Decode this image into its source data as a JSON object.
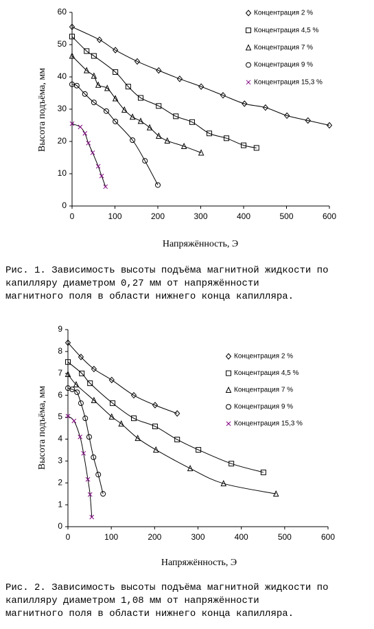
{
  "chart_data": [
    {
      "type": "scatter",
      "xlabel": "Напряжённость, Э",
      "ylabel": "Высота подъёма, мм",
      "xlim": [
        0,
        600
      ],
      "ylim": [
        0,
        60
      ],
      "xticks": [
        0,
        100,
        200,
        300,
        400,
        500,
        600
      ],
      "yticks": [
        0,
        10,
        20,
        30,
        40,
        50,
        60
      ],
      "legend": "upper right",
      "trendlines": true,
      "series": [
        {
          "name": "Концентрация 2 %",
          "color": "#000000",
          "marker": "diamond",
          "x": [
            0,
            64,
            101,
            152,
            202,
            251,
            301,
            352,
            402,
            451,
            501,
            550,
            600
          ],
          "values": [
            55.5,
            51.5,
            48.3,
            44.8,
            42,
            39.4,
            37,
            34.3,
            31.7,
            30.5,
            28,
            26.5,
            25
          ]
        },
        {
          "name": "Концентрация 4,5 %",
          "color": "#000000",
          "marker": "square",
          "x": [
            0,
            34,
            51,
            101,
            131,
            160,
            202,
            242,
            280,
            320,
            360,
            400,
            430
          ],
          "values": [
            52.5,
            48,
            46.5,
            41.5,
            37,
            33.5,
            31,
            27.8,
            26,
            22.5,
            21,
            18.8,
            18
          ]
        },
        {
          "name": "Концентрация 7 %",
          "color": "#000000",
          "marker": "triangle",
          "x": [
            0,
            34,
            51,
            61,
            82,
            101,
            122,
            141,
            160,
            181,
            202,
            222,
            261,
            301
          ],
          "values": [
            46.5,
            42,
            40.3,
            37.5,
            36.5,
            33.3,
            29.8,
            27.6,
            26.3,
            24.3,
            21.7,
            20.2,
            18.5,
            16.5
          ]
        },
        {
          "name": "Концентрация 9 %",
          "color": "#000000",
          "marker": "circle",
          "x": [
            0,
            11,
            30,
            51,
            80,
            101,
            141,
            170,
            200
          ],
          "values": [
            37.7,
            37.3,
            34.7,
            32.1,
            29.4,
            26.2,
            20.4,
            14,
            6.5
          ]
        },
        {
          "name": "Концентрация 15,3 %",
          "color": "#800080",
          "marker": "cross",
          "x": [
            0,
            19,
            30,
            38,
            48,
            61,
            69,
            78
          ],
          "values": [
            25.5,
            24.5,
            22.5,
            19.5,
            16.5,
            12.3,
            9.3,
            6
          ]
        }
      ],
      "caption": [
        "Рис. 1. Зависимость высоты подъёма магнитной жидкости по",
        "капилляру диаметром 0,27 мм от напряжённости",
        "магнитного поля в области нижнего конца капилляра."
      ]
    },
    {
      "type": "scatter",
      "xlabel": "Напряжённость, Э",
      "ylabel": "Высота подъёма, мм",
      "xlim": [
        0,
        600
      ],
      "ylim": [
        0,
        9
      ],
      "xticks": [
        0,
        100,
        200,
        300,
        400,
        500,
        600
      ],
      "yticks": [
        0,
        1,
        2,
        3,
        4,
        5,
        6,
        7,
        8,
        9
      ],
      "legend": "upper right",
      "trendlines": true,
      "series": [
        {
          "name": "Концентрация 2 %",
          "color": "#000000",
          "marker": "diamond",
          "x": [
            0,
            30,
            60,
            101,
            152,
            201,
            252
          ],
          "values": [
            8.4,
            7.75,
            7.2,
            6.7,
            6,
            5.55,
            5.17
          ]
        },
        {
          "name": "Концентрация 4,5 %",
          "color": "#000000",
          "marker": "square",
          "x": [
            0,
            32,
            51,
            103,
            152,
            201,
            252,
            301,
            377,
            451
          ],
          "values": [
            7.52,
            7,
            6.55,
            5.64,
            4.95,
            4.58,
            3.98,
            3.51,
            2.88,
            2.48
          ]
        },
        {
          "name": "Концентрация 7 %",
          "color": "#000000",
          "marker": "triangle",
          "x": [
            0,
            19,
            60,
            101,
            123,
            161,
            203,
            282,
            359,
            480
          ],
          "values": [
            6.96,
            6.49,
            5.77,
            5.02,
            4.7,
            4.04,
            3.51,
            2.66,
            1.97,
            1.5
          ]
        },
        {
          "name": "Концентрация 9 %",
          "color": "#000000",
          "marker": "circle",
          "x": [
            0,
            10,
            21,
            30,
            40,
            49,
            59,
            70,
            81
          ],
          "values": [
            6.33,
            6.27,
            6.14,
            5.64,
            4.95,
            4.1,
            3.17,
            2.38,
            1.5
          ]
        },
        {
          "name": "Концентрация 15,3 %",
          "color": "#800080",
          "marker": "cross",
          "x": [
            0,
            14,
            28,
            36,
            46,
            51,
            55
          ],
          "values": [
            5.05,
            4.83,
            4.1,
            3.35,
            2.16,
            1.47,
            0.44
          ]
        }
      ],
      "caption": [
        "Рис. 2. Зависимость высоты подъёма магнитной жидкости по",
        "капилляру диаметром 1,08 мм от напряжённости",
        "магнитного поля в области нижнего конца капилляра."
      ]
    }
  ]
}
